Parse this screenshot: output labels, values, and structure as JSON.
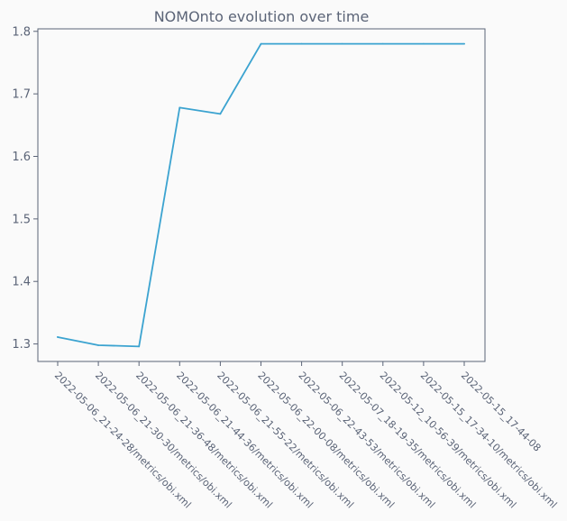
{
  "chart_data": {
    "type": "line",
    "title": "NOMOnto evolution over time",
    "xlabel": "",
    "ylabel": "",
    "categories": [
      "2022-05-06_21-24-28/metrics/obi.xml",
      "2022-05-06_21-30-30/metrics/obi.xml",
      "2022-05-06_21-36-48/metrics/obi.xml",
      "2022-05-06_21-44-36/metrics/obi.xml",
      "2022-05-06_21-55-22/metrics/obi.xml",
      "2022-05-06_22-00-08/metrics/obi.xml",
      "2022-05-06_22-43-53/metrics/obi.xml",
      "2022-05-07_18-19-35/metrics/obi.xml",
      "2022-05-12_10-56-39/metrics/obi.xml",
      "2022-05-15_17-34-10/metrics/obi.xml",
      "2022-05-15_17-44-08"
    ],
    "series": [
      {
        "color": "#3ba3d0",
        "values": [
          1.311,
          1.298,
          1.296,
          1.678,
          1.668,
          1.78,
          1.78,
          1.78,
          1.78,
          1.78,
          1.78
        ]
      }
    ],
    "yticks": [
      1.3,
      1.4,
      1.5,
      1.6,
      1.7,
      1.8
    ],
    "ylim": [
      1.272,
      1.804
    ],
    "grid": false,
    "legend": "none"
  }
}
